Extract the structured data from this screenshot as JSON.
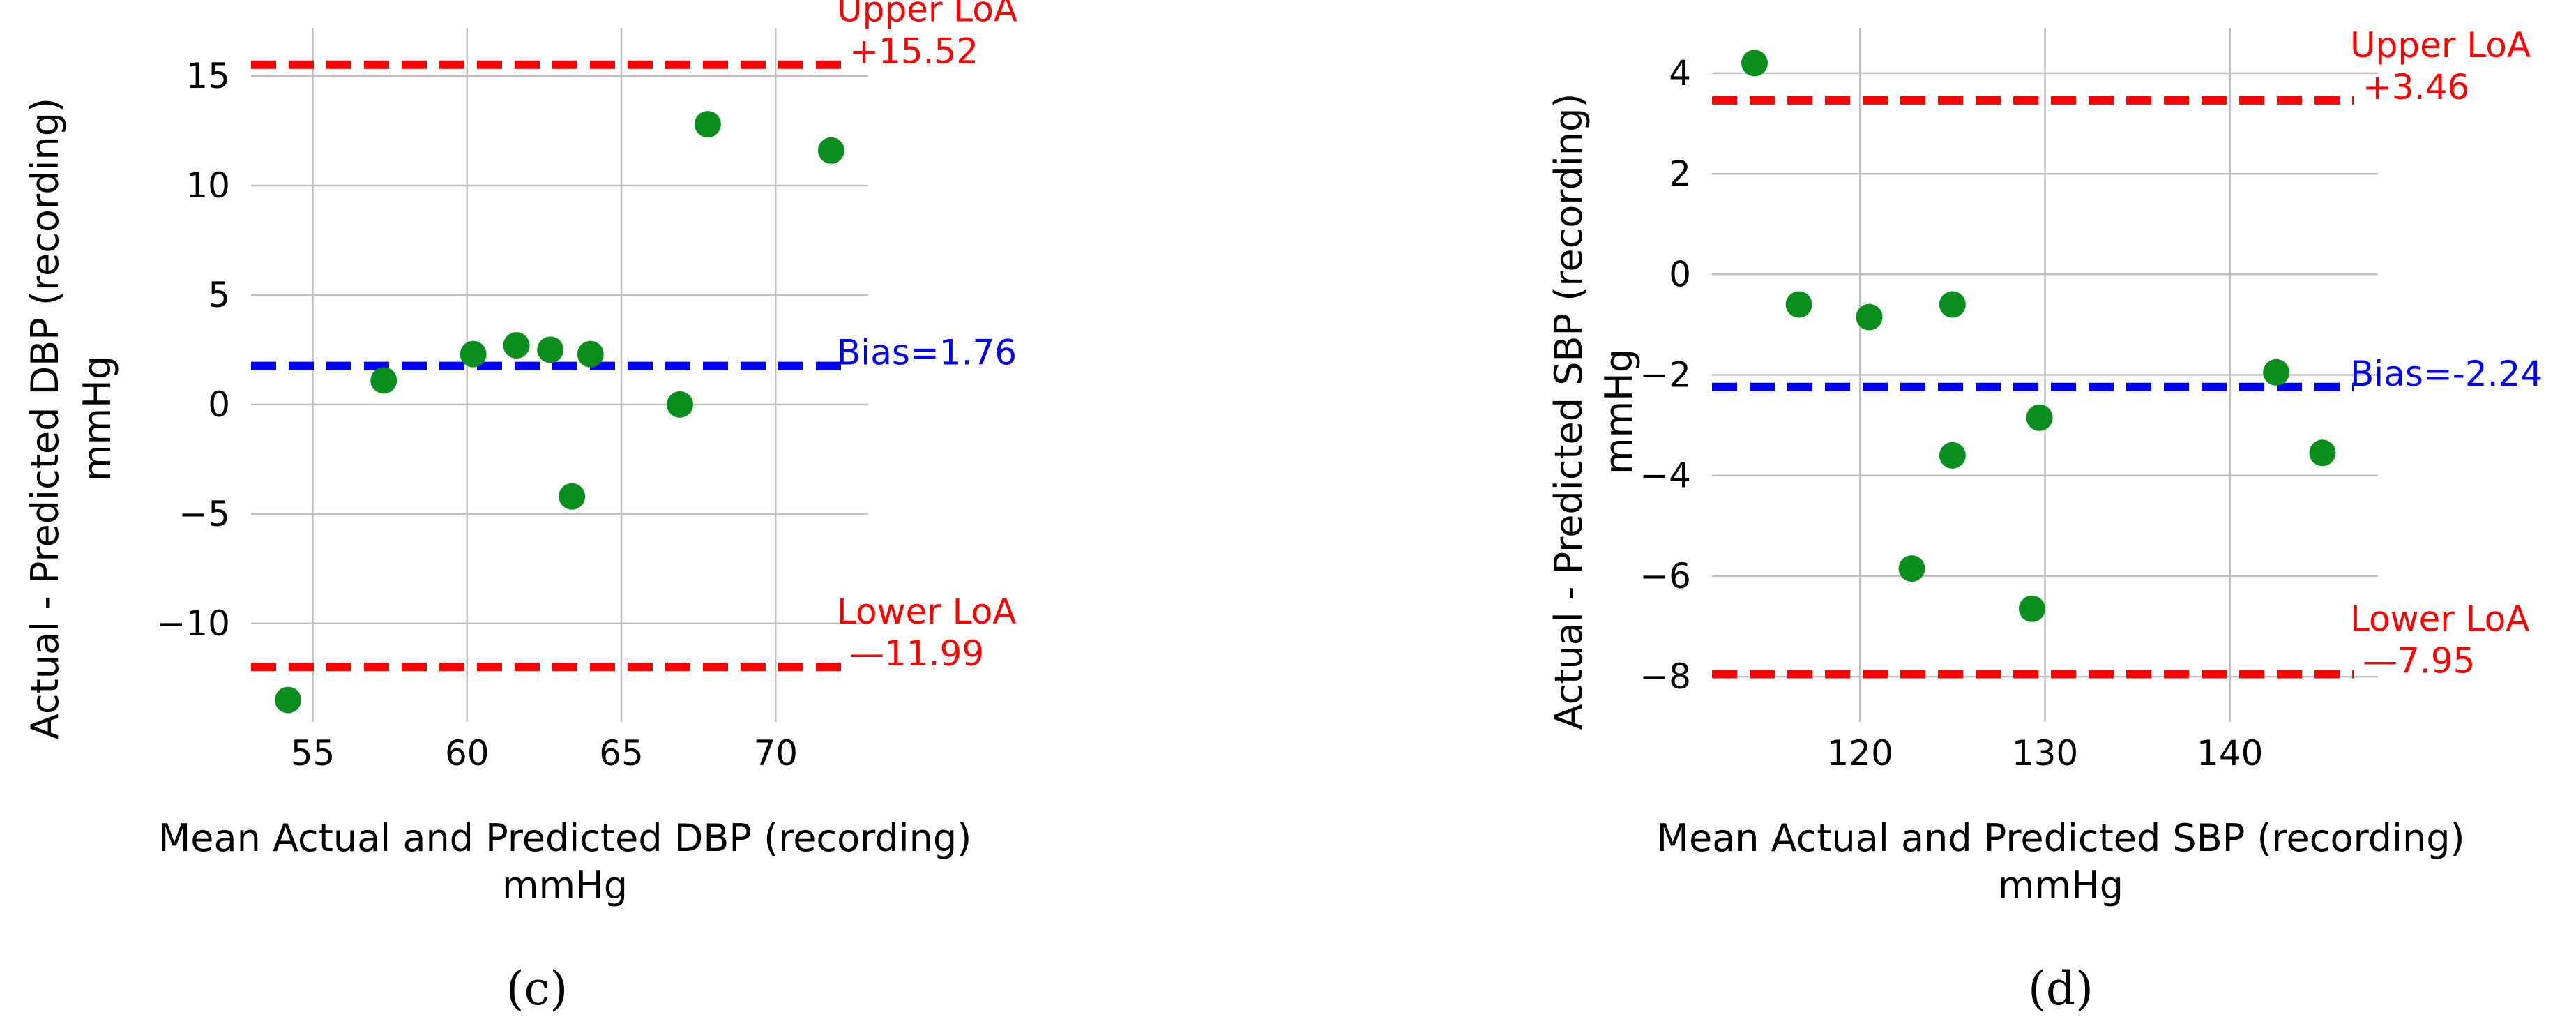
{
  "chart_data": [
    {
      "type": "scatter",
      "panel_label": "(c)",
      "xlabel": [
        "Mean Actual and Predicted DBP (recording)",
        "mmHg"
      ],
      "ylabel": [
        "Actual  - Predicted DBP (recording)",
        "mmHg"
      ],
      "xlim": [
        53,
        73
      ],
      "ylim": [
        -14.5,
        17.2
      ],
      "xticks": [
        55,
        60,
        65,
        70
      ],
      "xtick_labels": [
        "55",
        "60",
        "65",
        "70"
      ],
      "yticks": [
        -10,
        -5,
        0,
        5,
        10,
        15
      ],
      "ytick_labels": [
        "−10",
        "−5",
        "0",
        "5",
        "10",
        "15"
      ],
      "points": [
        {
          "x": 54.2,
          "y": -13.5
        },
        {
          "x": 57.3,
          "y": 1.1
        },
        {
          "x": 60.2,
          "y": 2.3
        },
        {
          "x": 61.6,
          "y": 2.7
        },
        {
          "x": 62.7,
          "y": 2.5
        },
        {
          "x": 63.4,
          "y": -4.2
        },
        {
          "x": 64.0,
          "y": 2.3
        },
        {
          "x": 66.9,
          "y": 0.0
        },
        {
          "x": 67.8,
          "y": 12.8
        },
        {
          "x": 71.8,
          "y": 11.6
        }
      ],
      "point_color": "#0a8f1e",
      "lines": [
        {
          "name": "upper_loa",
          "y": 15.52,
          "color": "#ff0000",
          "label_lines": [
            "Upper LoA",
            "+15.52"
          ]
        },
        {
          "name": "bias",
          "y": 1.76,
          "color": "#0000ff",
          "label_lines": [
            "Bias=1.76"
          ]
        },
        {
          "name": "lower_loa",
          "y": -11.99,
          "color": "#ff0000",
          "label_lines": [
            "Lower LoA",
            "—11.99"
          ]
        }
      ],
      "grid": true
    },
    {
      "type": "scatter",
      "panel_label": "(d)",
      "xlabel": [
        "Mean Actual and Predicted SBP (recording)",
        "mmHg"
      ],
      "ylabel": [
        "Actual  - Predicted SBP (recording)",
        "mmHg"
      ],
      "xlim": [
        112,
        148
      ],
      "ylim": [
        -8.9,
        4.9
      ],
      "xticks": [
        120,
        130,
        140
      ],
      "xtick_labels": [
        "120",
        "130",
        "140"
      ],
      "yticks": [
        -8,
        -6,
        -4,
        -2,
        0,
        2,
        4
      ],
      "ytick_labels": [
        "−8",
        "−6",
        "−4",
        "−2",
        "0",
        "2",
        "4"
      ],
      "points": [
        {
          "x": 114.3,
          "y": 4.2
        },
        {
          "x": 116.7,
          "y": -0.6
        },
        {
          "x": 120.5,
          "y": -0.85
        },
        {
          "x": 122.8,
          "y": -5.85
        },
        {
          "x": 125.0,
          "y": -0.6
        },
        {
          "x": 125.0,
          "y": -3.6
        },
        {
          "x": 129.3,
          "y": -6.65
        },
        {
          "x": 129.7,
          "y": -2.85
        },
        {
          "x": 142.5,
          "y": -1.95
        },
        {
          "x": 145.0,
          "y": -3.55
        }
      ],
      "point_color": "#0a8f1e",
      "lines": [
        {
          "name": "upper_loa",
          "y": 3.46,
          "color": "#ff0000",
          "label_lines": [
            "Upper LoA",
            "+3.46"
          ]
        },
        {
          "name": "bias",
          "y": -2.24,
          "color": "#0000ff",
          "label_lines": [
            "Bias=-2.24"
          ]
        },
        {
          "name": "lower_loa",
          "y": -7.95,
          "color": "#ff0000",
          "label_lines": [
            "Lower LoA",
            "—7.95"
          ]
        }
      ],
      "grid": true
    }
  ]
}
